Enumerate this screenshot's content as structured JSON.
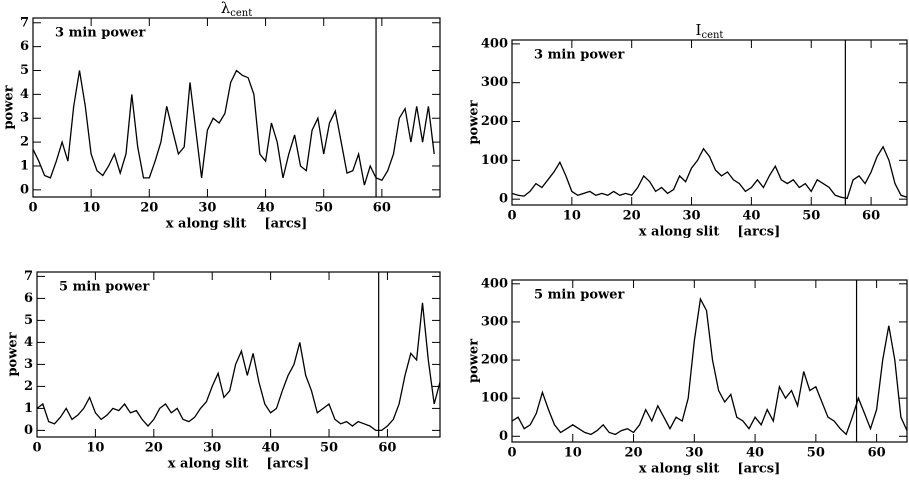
{
  "chart_data": [
    {
      "type": "line",
      "title": "λ",
      "title_subscript": "cent",
      "annotation": "3 min power",
      "xlabel": "x along slit    [arcs]",
      "ylabel": "power",
      "xlim": [
        0,
        70
      ],
      "ylim": [
        -0.3,
        7.2
      ],
      "xticks": [
        0,
        10,
        20,
        30,
        40,
        50,
        60
      ],
      "yticks": [
        0,
        1,
        2,
        3,
        4,
        5,
        6,
        7
      ],
      "vline": 59,
      "color": "#000000",
      "x": [
        0,
        1,
        2,
        3,
        4,
        5,
        6,
        7,
        8,
        9,
        10,
        11,
        12,
        13,
        14,
        15,
        16,
        17,
        18,
        19,
        20,
        21,
        22,
        23,
        24,
        25,
        26,
        27,
        28,
        29,
        30,
        31,
        32,
        33,
        34,
        35,
        36,
        37,
        38,
        39,
        40,
        41,
        42,
        43,
        44,
        45,
        46,
        47,
        48,
        49,
        50,
        51,
        52,
        53,
        54,
        55,
        56,
        57,
        58,
        59,
        60,
        61,
        62,
        63,
        64,
        65,
        66,
        67,
        68,
        69
      ],
      "values": [
        1.7,
        1.2,
        0.6,
        0.5,
        1.2,
        2.0,
        1.2,
        3.5,
        5.0,
        3.5,
        1.5,
        0.8,
        0.6,
        1.0,
        1.5,
        0.7,
        1.5,
        4.0,
        1.8,
        0.5,
        0.5,
        1.2,
        2.0,
        3.5,
        2.5,
        1.5,
        1.8,
        4.5,
        2.5,
        0.5,
        2.5,
        3.0,
        2.8,
        3.2,
        4.5,
        5.0,
        4.8,
        4.7,
        4.0,
        1.5,
        1.2,
        2.8,
        2.0,
        0.5,
        1.5,
        2.3,
        1.0,
        0.8,
        2.5,
        3.0,
        1.5,
        2.8,
        3.3,
        2.0,
        0.7,
        0.8,
        1.5,
        0.2,
        1.0,
        0.5,
        0.4,
        0.8,
        1.5,
        3.0,
        3.4,
        2.0,
        3.5,
        2.0,
        3.5,
        1.5
      ]
    },
    {
      "type": "line",
      "title": "I",
      "title_subscript": "cent",
      "annotation": "3 min power",
      "xlabel": "x along slit    [arcs]",
      "ylabel": "power",
      "xlim": [
        0,
        66
      ],
      "ylim": [
        -15,
        410
      ],
      "xticks": [
        0,
        10,
        20,
        30,
        40,
        50,
        60
      ],
      "yticks": [
        0,
        100,
        200,
        300,
        400
      ],
      "vline": 55.7,
      "color": "#000000",
      "x": [
        0,
        1,
        2,
        3,
        4,
        5,
        6,
        7,
        8,
        9,
        10,
        11,
        12,
        13,
        14,
        15,
        16,
        17,
        18,
        19,
        20,
        21,
        22,
        23,
        24,
        25,
        26,
        27,
        28,
        29,
        30,
        31,
        32,
        33,
        34,
        35,
        36,
        37,
        38,
        39,
        40,
        41,
        42,
        43,
        44,
        45,
        46,
        47,
        48,
        49,
        50,
        51,
        52,
        53,
        54,
        55,
        56,
        57,
        58,
        59,
        60,
        61,
        62,
        63,
        64,
        65,
        66
      ],
      "values": [
        15,
        10,
        8,
        20,
        40,
        30,
        50,
        70,
        95,
        60,
        20,
        10,
        15,
        20,
        10,
        15,
        10,
        20,
        10,
        15,
        10,
        30,
        60,
        45,
        20,
        30,
        15,
        25,
        60,
        45,
        80,
        100,
        130,
        110,
        75,
        60,
        70,
        50,
        40,
        20,
        30,
        50,
        30,
        60,
        85,
        50,
        40,
        50,
        30,
        40,
        20,
        50,
        40,
        30,
        10,
        5,
        2,
        50,
        60,
        40,
        70,
        110,
        135,
        100,
        40,
        10,
        5
      ]
    },
    {
      "type": "line",
      "annotation": "5 min power",
      "xlabel": "x along slit    [arcs]",
      "ylabel": "power",
      "xlim": [
        0,
        69
      ],
      "ylim": [
        -0.3,
        7.2
      ],
      "xticks": [
        0,
        10,
        20,
        30,
        40,
        50,
        60
      ],
      "yticks": [
        0,
        1,
        2,
        3,
        4,
        5,
        6,
        7
      ],
      "vline": 58.5,
      "color": "#000000",
      "x": [
        0,
        1,
        2,
        3,
        4,
        5,
        6,
        7,
        8,
        9,
        10,
        11,
        12,
        13,
        14,
        15,
        16,
        17,
        18,
        19,
        20,
        21,
        22,
        23,
        24,
        25,
        26,
        27,
        28,
        29,
        30,
        31,
        32,
        33,
        34,
        35,
        36,
        37,
        38,
        39,
        40,
        41,
        42,
        43,
        44,
        45,
        46,
        47,
        48,
        49,
        50,
        51,
        52,
        53,
        54,
        55,
        56,
        57,
        58,
        59,
        60,
        61,
        62,
        63,
        64,
        65,
        66,
        67,
        68,
        69
      ],
      "values": [
        1.0,
        1.2,
        0.4,
        0.3,
        0.6,
        1.0,
        0.5,
        0.7,
        1.0,
        1.5,
        0.8,
        0.5,
        0.7,
        1.0,
        0.9,
        1.2,
        0.8,
        0.9,
        0.5,
        0.2,
        0.5,
        1.0,
        1.2,
        0.8,
        1.0,
        0.5,
        0.4,
        0.6,
        1.0,
        1.3,
        2.0,
        2.6,
        1.5,
        1.8,
        3.0,
        3.6,
        2.5,
        3.5,
        2.2,
        1.2,
        0.8,
        1.0,
        1.8,
        2.5,
        3.0,
        4.0,
        2.5,
        1.8,
        0.8,
        1.0,
        1.2,
        0.5,
        0.3,
        0.4,
        0.2,
        0.4,
        0.3,
        0.2,
        0.0,
        0.0,
        0.2,
        0.5,
        1.2,
        2.5,
        3.5,
        3.2,
        5.8,
        3.2,
        1.2,
        2.2
      ]
    },
    {
      "type": "line",
      "annotation": "5 min power",
      "xlabel": "x along slit    [arcs]",
      "ylabel": "power",
      "xlim": [
        0,
        65
      ],
      "ylim": [
        -15,
        410
      ],
      "xticks": [
        0,
        10,
        20,
        30,
        40,
        50,
        60
      ],
      "yticks": [
        0,
        100,
        200,
        300,
        400
      ],
      "vline": 56.7,
      "color": "#000000",
      "x": [
        0,
        1,
        2,
        3,
        4,
        5,
        6,
        7,
        8,
        9,
        10,
        11,
        12,
        13,
        14,
        15,
        16,
        17,
        18,
        19,
        20,
        21,
        22,
        23,
        24,
        25,
        26,
        27,
        28,
        29,
        30,
        31,
        32,
        33,
        34,
        35,
        36,
        37,
        38,
        39,
        40,
        41,
        42,
        43,
        44,
        45,
        46,
        47,
        48,
        49,
        50,
        51,
        52,
        53,
        54,
        55,
        56,
        57,
        58,
        59,
        60,
        61,
        62,
        63,
        64,
        65
      ],
      "values": [
        40,
        50,
        20,
        30,
        60,
        115,
        70,
        30,
        10,
        20,
        30,
        20,
        10,
        5,
        15,
        30,
        10,
        5,
        15,
        20,
        10,
        30,
        70,
        40,
        80,
        50,
        20,
        50,
        40,
        100,
        250,
        360,
        330,
        200,
        120,
        90,
        110,
        50,
        40,
        20,
        50,
        30,
        70,
        40,
        130,
        100,
        120,
        80,
        170,
        120,
        130,
        90,
        50,
        40,
        20,
        5,
        50,
        100,
        60,
        20,
        70,
        200,
        290,
        200,
        50,
        15
      ]
    }
  ]
}
